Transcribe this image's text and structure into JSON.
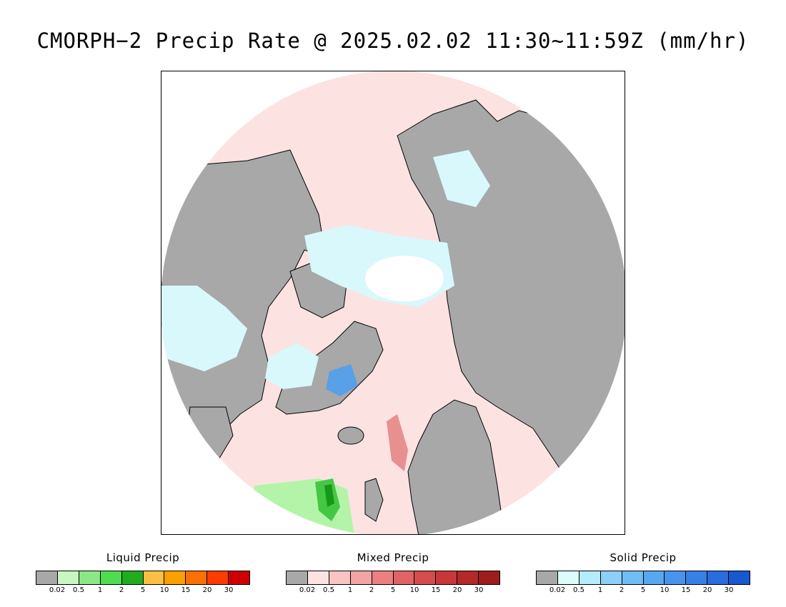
{
  "title": "CMORPH−2 Precip Rate @ 2025.02.02 11:30~11:59Z (mm/hr)",
  "map": {
    "projection": "north-polar-stereographic",
    "colors": {
      "no_precip_land": "#a8a8a8",
      "ocean_background": "#fde2e2",
      "solid_light": "#d8f8fc",
      "solid_moderate": "#58a0e8",
      "mixed_light": "#f4c0c0",
      "mixed_moderate": "#e89090",
      "liquid_light": "#b4f4a8",
      "liquid_moderate": "#44c844",
      "liquid_heavy": "#189818",
      "coastline": "#000000"
    }
  },
  "legends": [
    {
      "title": "Liquid Precip",
      "ticks": [
        "0.02",
        "0.5",
        "1",
        "2",
        "5",
        "10",
        "15",
        "20",
        "30"
      ],
      "colors": [
        "#a8a8a8",
        "#c8f8c0",
        "#8ce884",
        "#50dc50",
        "#20ac20",
        "#fcc040",
        "#fca000",
        "#fc7000",
        "#fc3c00",
        "#d00000"
      ]
    },
    {
      "title": "Mixed Precip",
      "ticks": [
        "0.02",
        "0.5",
        "1",
        "2",
        "5",
        "10",
        "15",
        "20",
        "30"
      ],
      "colors": [
        "#a8a8a8",
        "#fde2e2",
        "#f8c4c4",
        "#f4a4a4",
        "#ec8080",
        "#e06464",
        "#d44c4c",
        "#c83838",
        "#b42828",
        "#a01c1c"
      ]
    },
    {
      "title": "Solid Precip",
      "ticks": [
        "0.02",
        "0.5",
        "1",
        "2",
        "5",
        "10",
        "15",
        "20",
        "30"
      ],
      "colors": [
        "#a8a8a8",
        "#dcfcfc",
        "#b4ecfc",
        "#8cd0f8",
        "#70bcf4",
        "#58a8f0",
        "#4894ec",
        "#3880e8",
        "#286ce0",
        "#1858d0"
      ]
    }
  ]
}
